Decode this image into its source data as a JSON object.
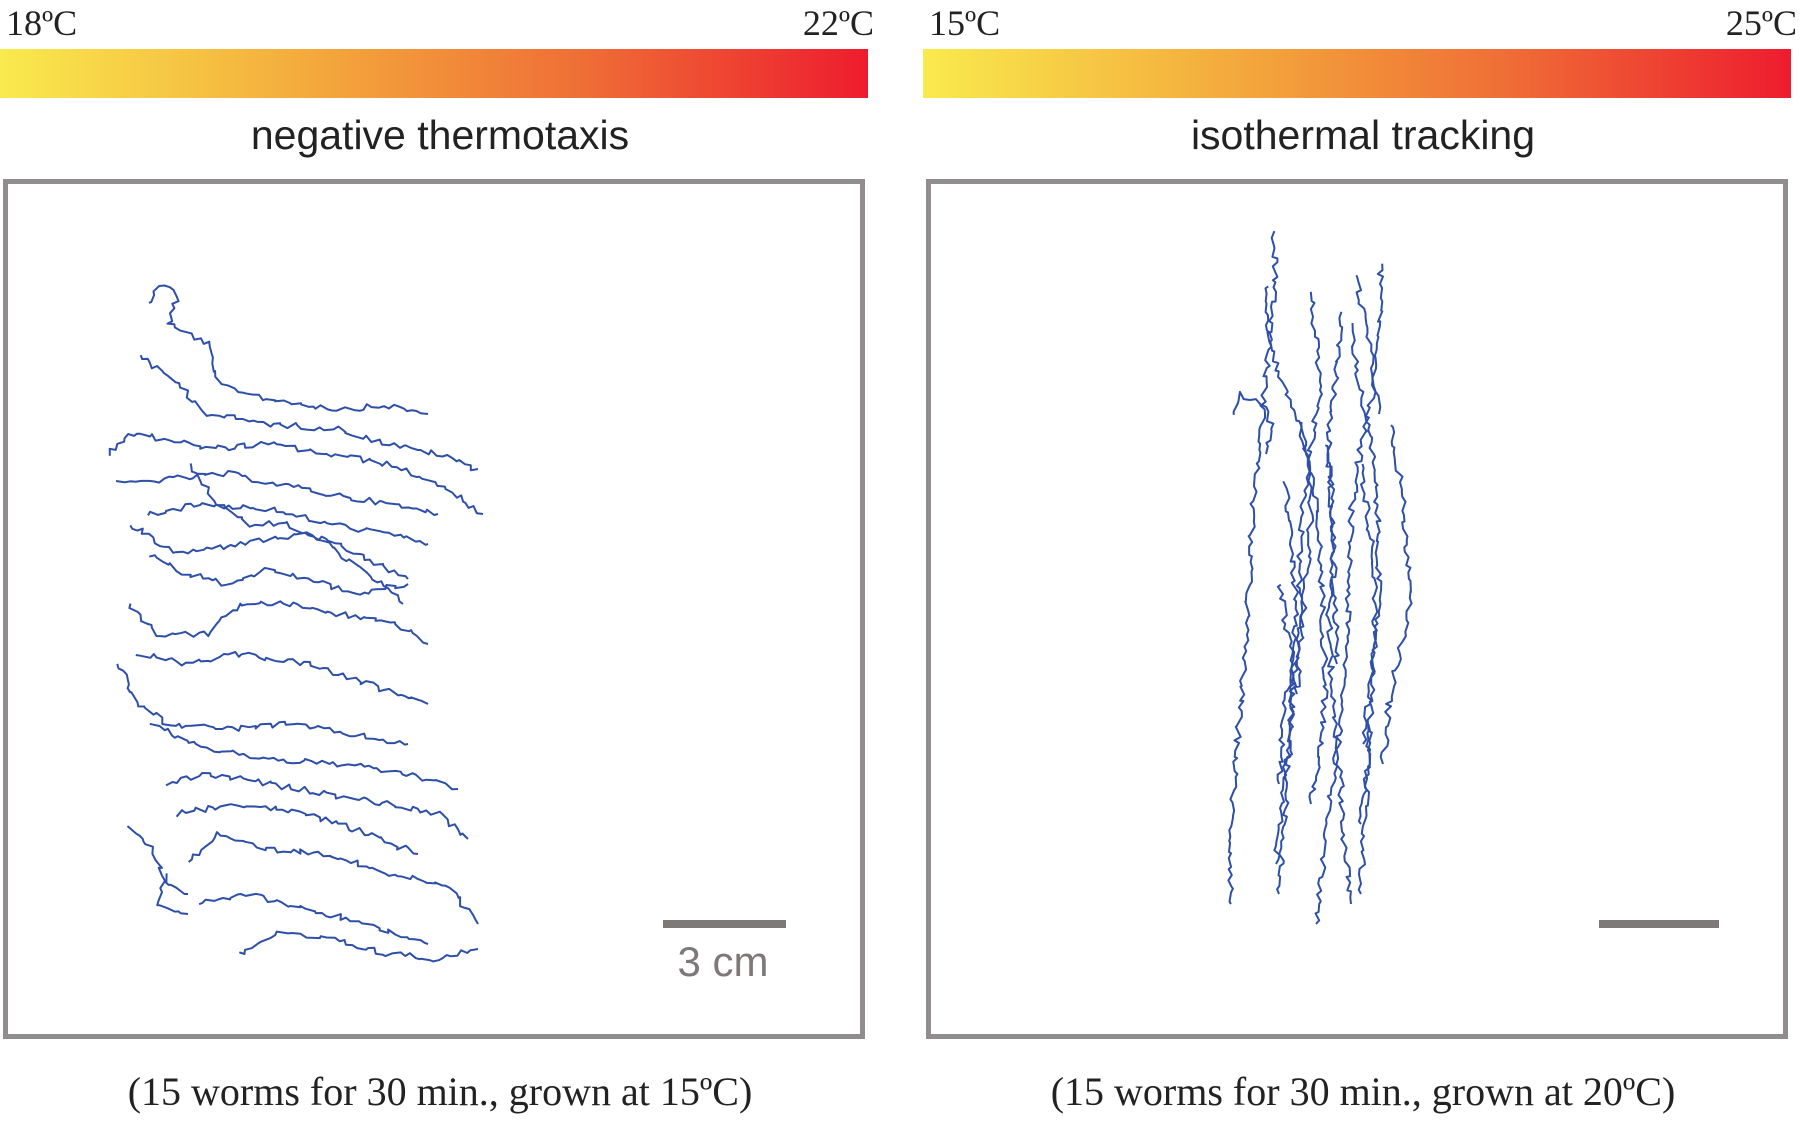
{
  "panels": [
    {
      "temp_min": "18ºC",
      "temp_max": "22ºC",
      "title": "negative thermotaxis",
      "scale_label": "3 cm",
      "caption": "(15 worms for 30 min., grown at 15ºC)"
    },
    {
      "temp_min": "15ºC",
      "temp_max": "25ºC",
      "title": "isothermal tracking",
      "scale_label": "",
      "caption": "(15 worms for 30 min., grown at 20ºC)"
    }
  ],
  "colors": {
    "track": "#2e4fa8",
    "frame": "#918d8e",
    "scale_bar": "#7d7979",
    "gradient_cold": "#f9ea4d",
    "gradient_hot": "#ee1c2e"
  }
}
